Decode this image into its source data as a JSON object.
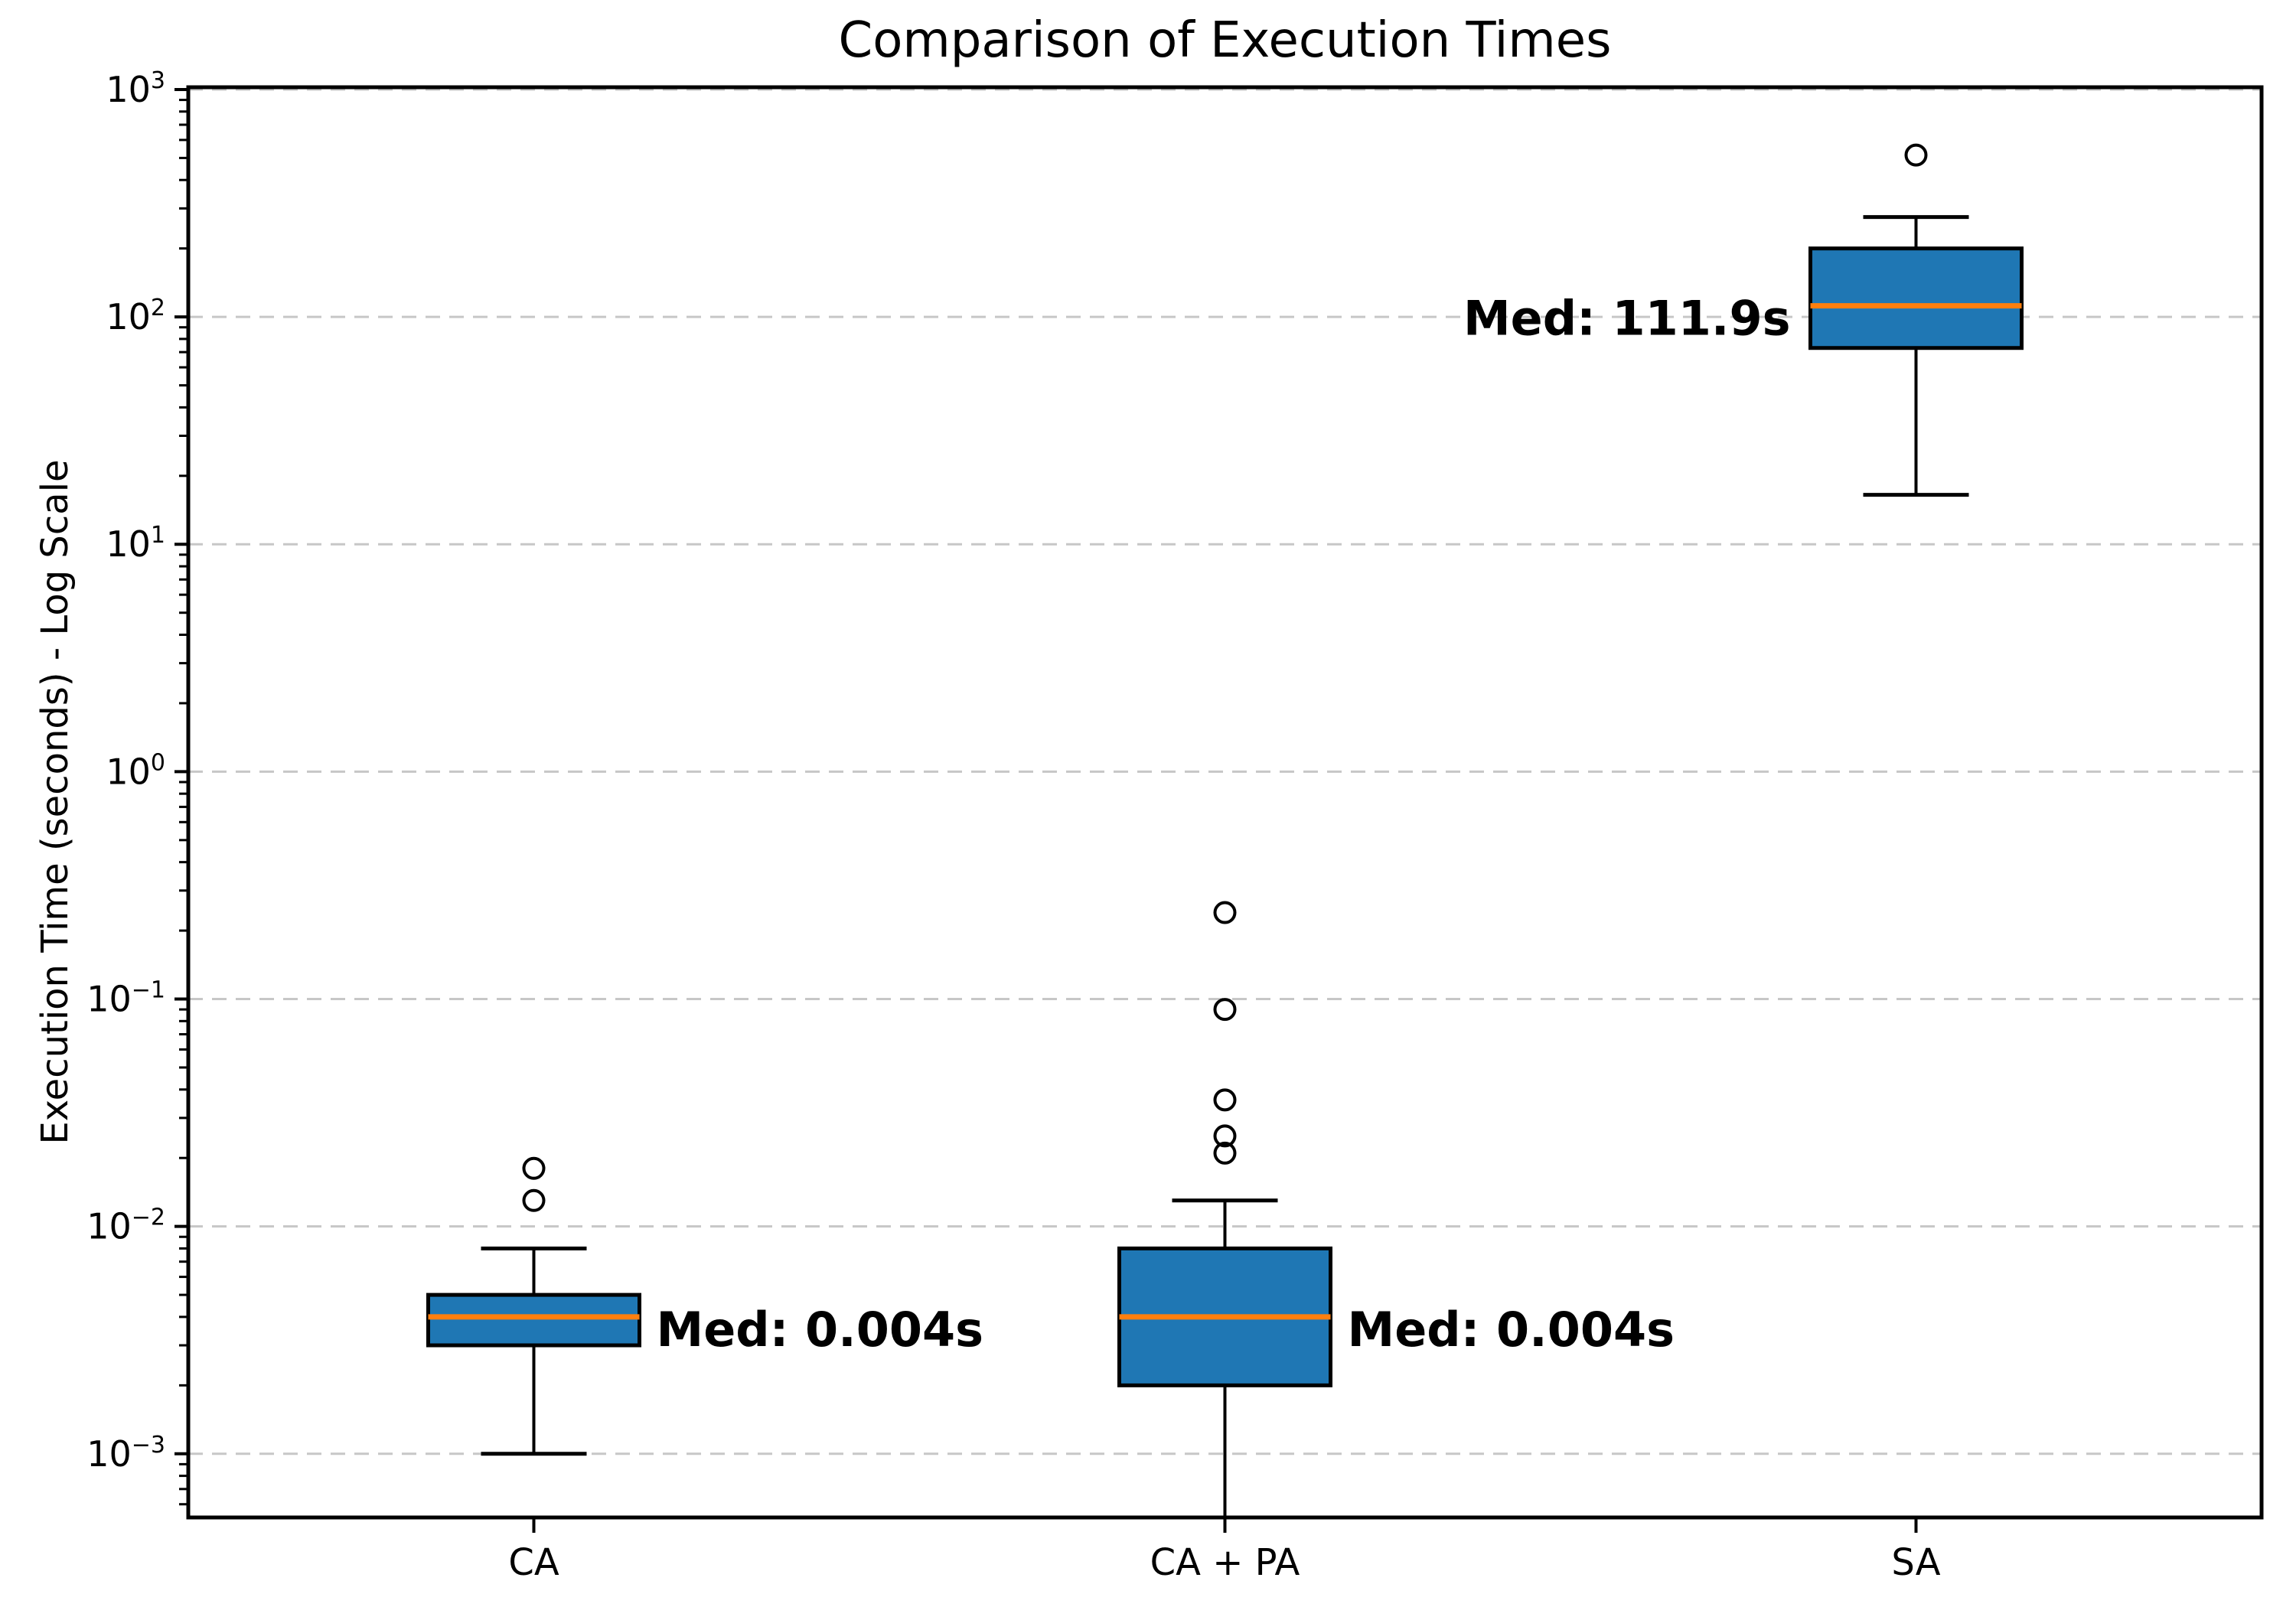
{
  "figure": {
    "background": "#ffffff"
  },
  "chart_data": {
    "type": "boxplot",
    "title": "Comparison of Execution Times",
    "xlabel": "",
    "ylabel": "Execution Time (seconds) - Log Scale",
    "y_scale": "log",
    "y_axis": {
      "max_exponent": 3.01,
      "min_exponent": -3.28,
      "major_tick_exponents": [
        3,
        2,
        1,
        0,
        -1,
        -2,
        -3
      ],
      "tick_base": "10",
      "minor_ticks": "log decades 2-9",
      "grid": "horizontal dashed at each decade"
    },
    "categories": [
      "CA",
      "CA + PA",
      "SA"
    ],
    "boxes": [
      {
        "category": "CA",
        "whisker_low": 0.001,
        "q1": 0.003,
        "median": 0.004,
        "q3": 0.005,
        "whisker_high": 0.008,
        "outliers": [
          0.013,
          0.018
        ],
        "median_label": "Med: 0.004s",
        "label_side": "right",
        "whisker_low_clipped": false
      },
      {
        "category": "CA + PA",
        "whisker_low": null,
        "q1": 0.002,
        "median": 0.004,
        "q3": 0.008,
        "whisker_high": 0.013,
        "outliers": [
          0.021,
          0.025,
          0.036,
          0.09,
          0.24
        ],
        "median_label": "Med: 0.004s",
        "label_side": "right",
        "whisker_low_clipped": true
      },
      {
        "category": "SA",
        "whisker_low": 16.5,
        "q1": 73,
        "median": 111.9,
        "q3": 200,
        "whisker_high": 275,
        "outliers": [
          515
        ],
        "median_label": "Med: 111.9s",
        "label_side": "left",
        "whisker_low_clipped": false
      }
    ],
    "colors": {
      "box_fill": "#1f77b4",
      "box_edge": "#000000",
      "median_line": "#ff7f0e",
      "whisker": "#000000",
      "outlier_edge": "#000000",
      "grid": "#c7c7c7",
      "text": "#000000",
      "background": "#ffffff"
    },
    "legend": "none"
  }
}
